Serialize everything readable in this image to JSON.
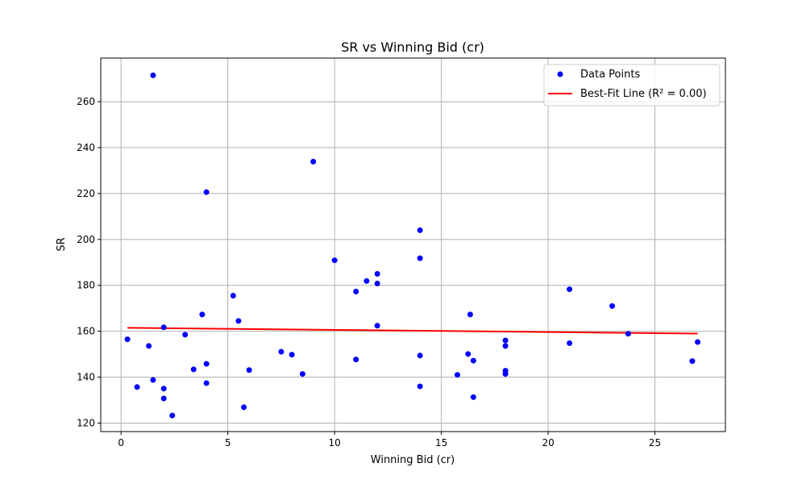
{
  "chart_data": {
    "type": "scatter",
    "title": "SR vs Winning Bid (cr)",
    "xlabel": "Winning Bid (cr)",
    "ylabel": "SR",
    "xlim": [
      -0.95,
      28.3
    ],
    "ylim": [
      116.3,
      279
    ],
    "xticks": [
      0,
      5,
      10,
      15,
      20,
      25
    ],
    "yticks": [
      120,
      140,
      160,
      180,
      200,
      220,
      240,
      260
    ],
    "grid": true,
    "legend_position": "top-right",
    "series": [
      {
        "name": "Data Points",
        "kind": "scatter",
        "color": "#0000ff",
        "points": [
          [
            0.3,
            156.5
          ],
          [
            0.75,
            135.7
          ],
          [
            1.3,
            153.6
          ],
          [
            1.5,
            271.5
          ],
          [
            1.5,
            138.8
          ],
          [
            2.0,
            161.7
          ],
          [
            2.0,
            135.0
          ],
          [
            2.0,
            130.7
          ],
          [
            2.4,
            123.3
          ],
          [
            3.0,
            158.5
          ],
          [
            3.4,
            143.4
          ],
          [
            3.8,
            167.3
          ],
          [
            4.0,
            220.6
          ],
          [
            4.0,
            145.8
          ],
          [
            4.0,
            137.4
          ],
          [
            5.25,
            175.5
          ],
          [
            5.5,
            164.5
          ],
          [
            5.75,
            126.9
          ],
          [
            6.0,
            143.1
          ],
          [
            7.5,
            151.1
          ],
          [
            8.0,
            149.8
          ],
          [
            8.5,
            141.4
          ],
          [
            9.0,
            233.9
          ],
          [
            10.0,
            190.9
          ],
          [
            11.0,
            177.3
          ],
          [
            11.0,
            147.7
          ],
          [
            11.5,
            181.9
          ],
          [
            12.0,
            185.0
          ],
          [
            12.0,
            180.8
          ],
          [
            12.0,
            162.4
          ],
          [
            14.0,
            204.0
          ],
          [
            14.0,
            191.8
          ],
          [
            14.0,
            149.4
          ],
          [
            14.0,
            136.0
          ],
          [
            15.75,
            141.0
          ],
          [
            16.25,
            150.1
          ],
          [
            16.35,
            167.3
          ],
          [
            16.5,
            147.2
          ],
          [
            16.5,
            131.3
          ],
          [
            18.0,
            156.0
          ],
          [
            18.0,
            153.6
          ],
          [
            18.0,
            142.8
          ],
          [
            18.0,
            141.4
          ],
          [
            21.0,
            178.3
          ],
          [
            21.0,
            154.8
          ],
          [
            23.0,
            171.0
          ],
          [
            23.75,
            158.9
          ],
          [
            26.75,
            147.0
          ],
          [
            27.0,
            155.3
          ]
        ]
      },
      {
        "name": "Best-Fit Line (R² = 0.00)",
        "kind": "line",
        "color": "#ff0000",
        "x": [
          0.3,
          27.0
        ],
        "y": [
          161.5,
          159.0
        ]
      }
    ]
  }
}
